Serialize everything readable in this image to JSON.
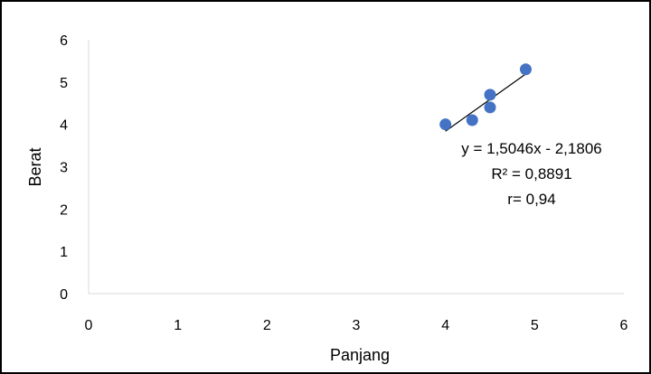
{
  "chart_data": {
    "type": "scatter",
    "title": "",
    "xlabel": "Panjang",
    "ylabel": "Berat",
    "xlim": [
      0,
      6
    ],
    "ylim": [
      0,
      6
    ],
    "x_ticks": [
      "0",
      "1",
      "2",
      "3",
      "4",
      "5",
      "6"
    ],
    "y_ticks": [
      "0",
      "1",
      "2",
      "3",
      "4",
      "5",
      "6"
    ],
    "grid": false,
    "legend": "none",
    "series": [
      {
        "color": "#4472C4",
        "points": [
          {
            "x": 4.0,
            "y": 4.0
          },
          {
            "x": 4.3,
            "y": 4.1
          },
          {
            "x": 4.5,
            "y": 4.7
          },
          {
            "x": 4.5,
            "y": 4.4
          },
          {
            "x": 4.9,
            "y": 5.3
          }
        ]
      }
    ],
    "trendline": {
      "type": "linear",
      "slope": 1.5046,
      "intercept": -2.1806,
      "x_range": [
        4.0,
        4.9
      ],
      "color": "#000000"
    },
    "annotations": [
      "y = 1,5046x - 2,1806",
      "R² = 0,8891",
      "r= 0,94"
    ]
  }
}
